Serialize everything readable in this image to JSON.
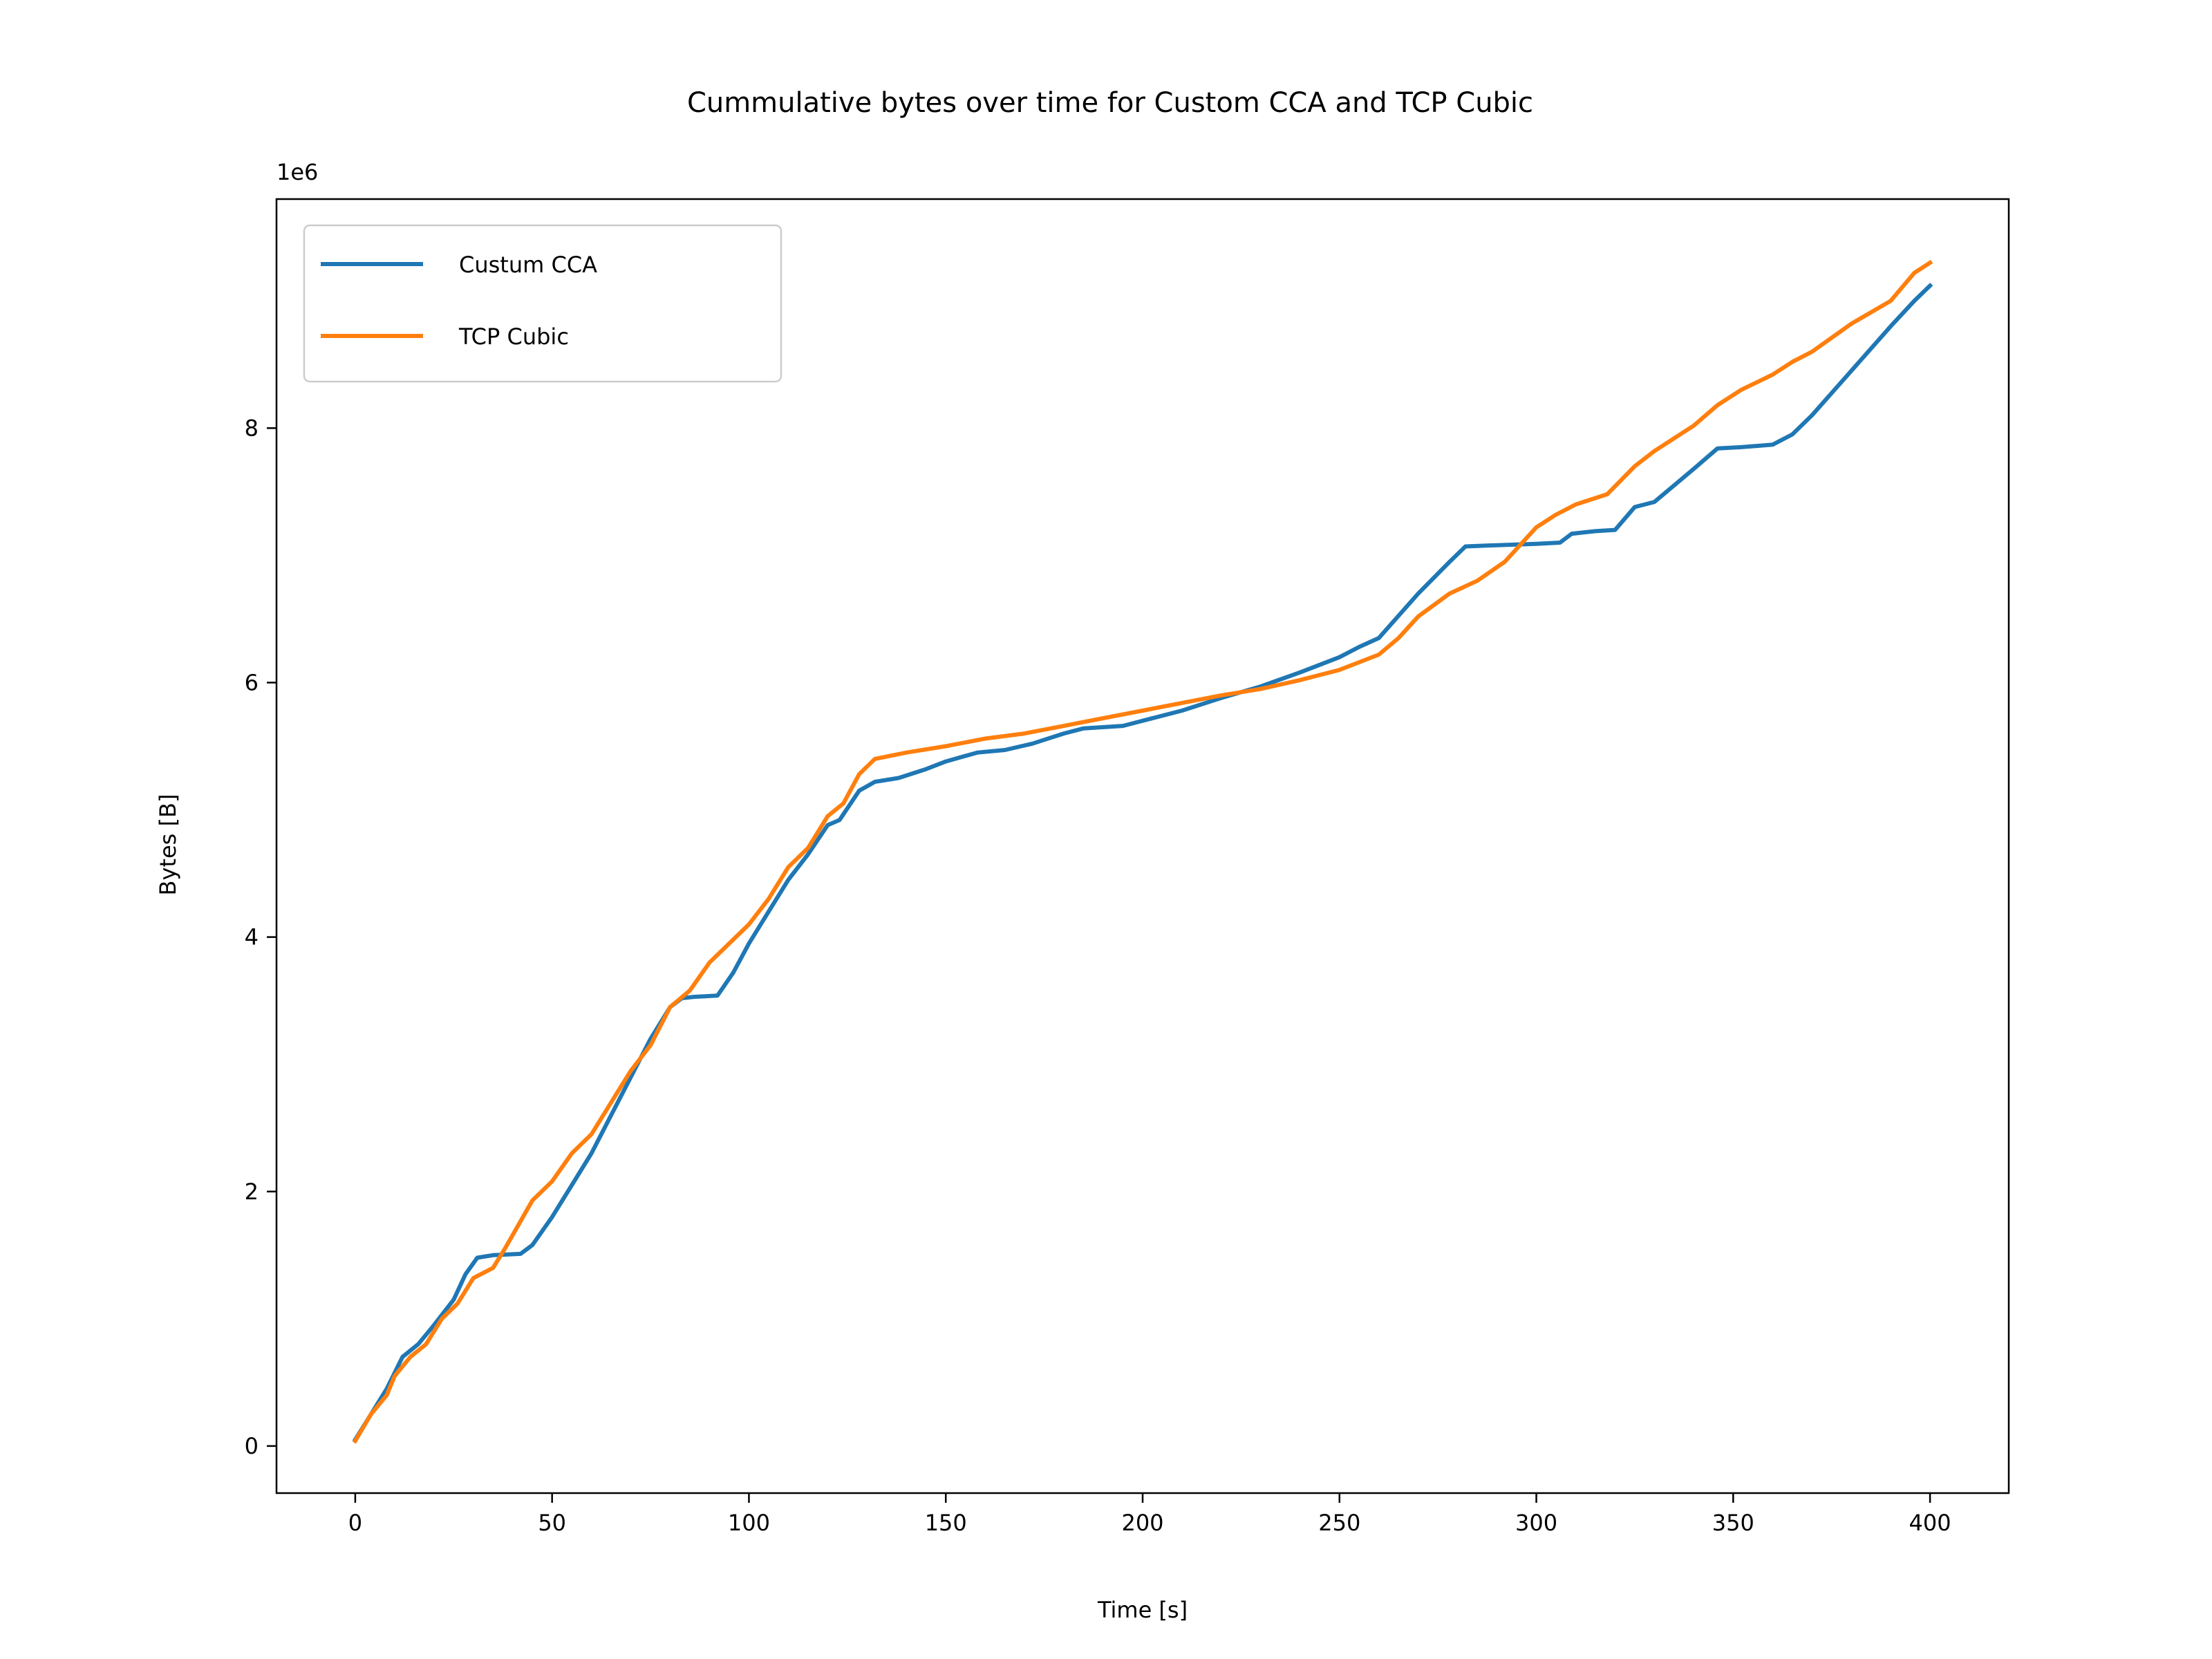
{
  "chart_data": {
    "type": "line",
    "title": "Cummulative bytes over time for Custom CCA and TCP Cubic",
    "xlabel": "Time [s]",
    "ylabel": "Bytes [B]",
    "y_offset_label": "1e6",
    "xlim": [
      -20,
      420
    ],
    "ylim": [
      -0.37,
      9.8
    ],
    "x_ticks": [
      0,
      50,
      100,
      150,
      200,
      250,
      300,
      350,
      400
    ],
    "x_tick_labels": [
      "0",
      "50",
      "100",
      "150",
      "200",
      "250",
      "300",
      "350",
      "400"
    ],
    "y_ticks": [
      0,
      2,
      4,
      6,
      8
    ],
    "y_tick_labels": [
      "0",
      "2",
      "4",
      "6",
      "8"
    ],
    "grid": false,
    "legend_position": "upper left",
    "series": [
      {
        "name": "Custum CCA",
        "color": "#1f77b4",
        "points": [
          [
            0,
            0.05
          ],
          [
            4,
            0.25
          ],
          [
            8,
            0.45
          ],
          [
            12,
            0.7
          ],
          [
            16,
            0.8
          ],
          [
            20,
            0.95
          ],
          [
            25,
            1.15
          ],
          [
            28,
            1.35
          ],
          [
            31,
            1.48
          ],
          [
            35,
            1.5
          ],
          [
            42,
            1.51
          ],
          [
            45,
            1.58
          ],
          [
            50,
            1.8
          ],
          [
            55,
            2.05
          ],
          [
            60,
            2.3
          ],
          [
            65,
            2.6
          ],
          [
            70,
            2.9
          ],
          [
            75,
            3.2
          ],
          [
            80,
            3.45
          ],
          [
            83,
            3.52
          ],
          [
            86,
            3.53
          ],
          [
            92,
            3.54
          ],
          [
            96,
            3.72
          ],
          [
            100,
            3.95
          ],
          [
            105,
            4.2
          ],
          [
            110,
            4.45
          ],
          [
            115,
            4.65
          ],
          [
            120,
            4.88
          ],
          [
            123,
            4.92
          ],
          [
            128,
            5.15
          ],
          [
            132,
            5.22
          ],
          [
            138,
            5.25
          ],
          [
            145,
            5.32
          ],
          [
            150,
            5.38
          ],
          [
            158,
            5.45
          ],
          [
            165,
            5.47
          ],
          [
            172,
            5.52
          ],
          [
            180,
            5.6
          ],
          [
            185,
            5.64
          ],
          [
            195,
            5.66
          ],
          [
            200,
            5.7
          ],
          [
            210,
            5.78
          ],
          [
            220,
            5.88
          ],
          [
            230,
            5.97
          ],
          [
            240,
            6.08
          ],
          [
            250,
            6.2
          ],
          [
            255,
            6.28
          ],
          [
            260,
            6.35
          ],
          [
            270,
            6.7
          ],
          [
            278,
            6.95
          ],
          [
            282,
            7.07
          ],
          [
            290,
            7.08
          ],
          [
            300,
            7.09
          ],
          [
            306,
            7.1
          ],
          [
            309,
            7.17
          ],
          [
            315,
            7.19
          ],
          [
            320,
            7.2
          ],
          [
            325,
            7.38
          ],
          [
            330,
            7.42
          ],
          [
            340,
            7.68
          ],
          [
            346,
            7.84
          ],
          [
            352,
            7.85
          ],
          [
            360,
            7.87
          ],
          [
            365,
            7.95
          ],
          [
            370,
            8.1
          ],
          [
            380,
            8.45
          ],
          [
            390,
            8.8
          ],
          [
            396,
            9.0
          ],
          [
            400,
            9.12
          ]
        ]
      },
      {
        "name": "TCP Cubic",
        "color": "#ff7f0e",
        "points": [
          [
            0,
            0.04
          ],
          [
            4,
            0.25
          ],
          [
            8,
            0.4
          ],
          [
            10,
            0.55
          ],
          [
            14,
            0.7
          ],
          [
            18,
            0.8
          ],
          [
            22,
            1.0
          ],
          [
            26,
            1.12
          ],
          [
            30,
            1.32
          ],
          [
            35,
            1.4
          ],
          [
            38,
            1.55
          ],
          [
            45,
            1.93
          ],
          [
            50,
            2.08
          ],
          [
            55,
            2.3
          ],
          [
            60,
            2.45
          ],
          [
            65,
            2.7
          ],
          [
            70,
            2.95
          ],
          [
            75,
            3.15
          ],
          [
            80,
            3.45
          ],
          [
            85,
            3.58
          ],
          [
            90,
            3.8
          ],
          [
            95,
            3.95
          ],
          [
            100,
            4.1
          ],
          [
            105,
            4.3
          ],
          [
            110,
            4.55
          ],
          [
            115,
            4.7
          ],
          [
            120,
            4.95
          ],
          [
            124,
            5.05
          ],
          [
            128,
            5.28
          ],
          [
            132,
            5.4
          ],
          [
            140,
            5.45
          ],
          [
            150,
            5.5
          ],
          [
            160,
            5.56
          ],
          [
            170,
            5.6
          ],
          [
            180,
            5.66
          ],
          [
            190,
            5.72
          ],
          [
            200,
            5.78
          ],
          [
            210,
            5.84
          ],
          [
            220,
            5.9
          ],
          [
            230,
            5.95
          ],
          [
            240,
            6.02
          ],
          [
            250,
            6.1
          ],
          [
            255,
            6.16
          ],
          [
            260,
            6.22
          ],
          [
            265,
            6.35
          ],
          [
            270,
            6.52
          ],
          [
            278,
            6.7
          ],
          [
            285,
            6.8
          ],
          [
            292,
            6.95
          ],
          [
            300,
            7.22
          ],
          [
            305,
            7.32
          ],
          [
            310,
            7.4
          ],
          [
            318,
            7.48
          ],
          [
            325,
            7.7
          ],
          [
            330,
            7.82
          ],
          [
            340,
            8.02
          ],
          [
            346,
            8.18
          ],
          [
            352,
            8.3
          ],
          [
            360,
            8.42
          ],
          [
            365,
            8.52
          ],
          [
            370,
            8.6
          ],
          [
            380,
            8.82
          ],
          [
            390,
            9.0
          ],
          [
            396,
            9.22
          ],
          [
            400,
            9.3
          ]
        ]
      }
    ]
  }
}
